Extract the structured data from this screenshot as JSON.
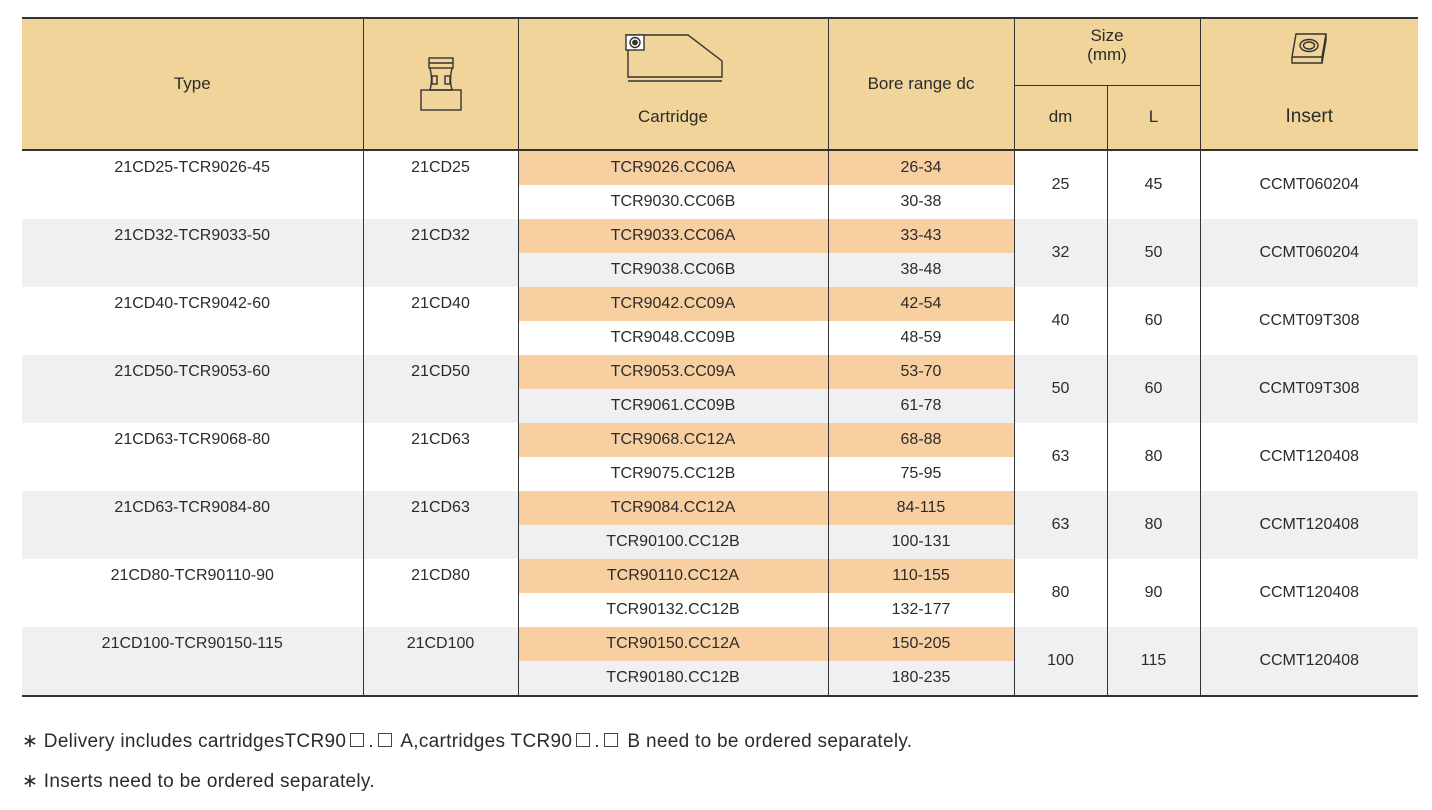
{
  "header": {
    "type": "Type",
    "cartridge": "Cartridge",
    "bore": "Bore range  dc",
    "size": "Size",
    "size_unit": "(mm)",
    "dm": "dm",
    "l": "L",
    "insert": "Insert",
    "icons": [
      "adapter-shank-icon",
      "cartridge-icon",
      "insert-icon"
    ]
  },
  "rows": [
    {
      "type": "21CD25-TCR9026-45",
      "holder": "21CD25",
      "cartA": "TCR9026.CC06A",
      "boreA": "26-34",
      "cartB": "TCR9030.CC06B",
      "boreB": "30-38",
      "dm": "25",
      "l": "45",
      "insert": "CCMT060204"
    },
    {
      "type": "21CD32-TCR9033-50",
      "holder": "21CD32",
      "cartA": "TCR9033.CC06A",
      "boreA": "33-43",
      "cartB": "TCR9038.CC06B",
      "boreB": "38-48",
      "dm": "32",
      "l": "50",
      "insert": "CCMT060204"
    },
    {
      "type": "21CD40-TCR9042-60",
      "holder": "21CD40",
      "cartA": "TCR9042.CC09A",
      "boreA": "42-54",
      "cartB": "TCR9048.CC09B",
      "boreB": "48-59",
      "dm": "40",
      "l": "60",
      "insert": "CCMT09T308"
    },
    {
      "type": "21CD50-TCR9053-60",
      "holder": "21CD50",
      "cartA": "TCR9053.CC09A",
      "boreA": "53-70",
      "cartB": "TCR9061.CC09B",
      "boreB": "61-78",
      "dm": "50",
      "l": "60",
      "insert": "CCMT09T308"
    },
    {
      "type": "21CD63-TCR9068-80",
      "holder": "21CD63",
      "cartA": "TCR9068.CC12A",
      "boreA": "68-88",
      "cartB": "TCR9075.CC12B",
      "boreB": "75-95",
      "dm": "63",
      "l": "80",
      "insert": "CCMT120408"
    },
    {
      "type": "21CD63-TCR9084-80",
      "holder": "21CD63",
      "cartA": "TCR9084.CC12A",
      "boreA": "84-115",
      "cartB": "TCR90100.CC12B",
      "boreB": "100-131",
      "dm": "63",
      "l": "80",
      "insert": "CCMT120408"
    },
    {
      "type": "21CD80-TCR90110-90",
      "holder": "21CD80",
      "cartA": "TCR90110.CC12A",
      "boreA": "110-155",
      "cartB": "TCR90132.CC12B",
      "boreB": "132-177",
      "dm": "80",
      "l": "90",
      "insert": "CCMT120408"
    },
    {
      "type": "21CD100-TCR90150-115",
      "holder": "21CD100",
      "cartA": "TCR90150.CC12A",
      "boreA": "150-205",
      "cartB": "TCR90180.CC12B",
      "boreB": "180-235",
      "dm": "100",
      "l": "115",
      "insert": "CCMT120408"
    }
  ],
  "notes": {
    "n1_a": "∗  Delivery includes cartridgesTCR90",
    "n1_b": ".",
    "n1_c": "A,cartridges TCR90",
    "n1_d": ".",
    "n1_e": "B need to be ordered separately.",
    "n2": "∗  Inserts need to be ordered separately."
  },
  "colors": {
    "header": "#f1d49a",
    "highlight": "#f8cfa1",
    "stripe": "#eef0f2",
    "rule": "#333333"
  }
}
